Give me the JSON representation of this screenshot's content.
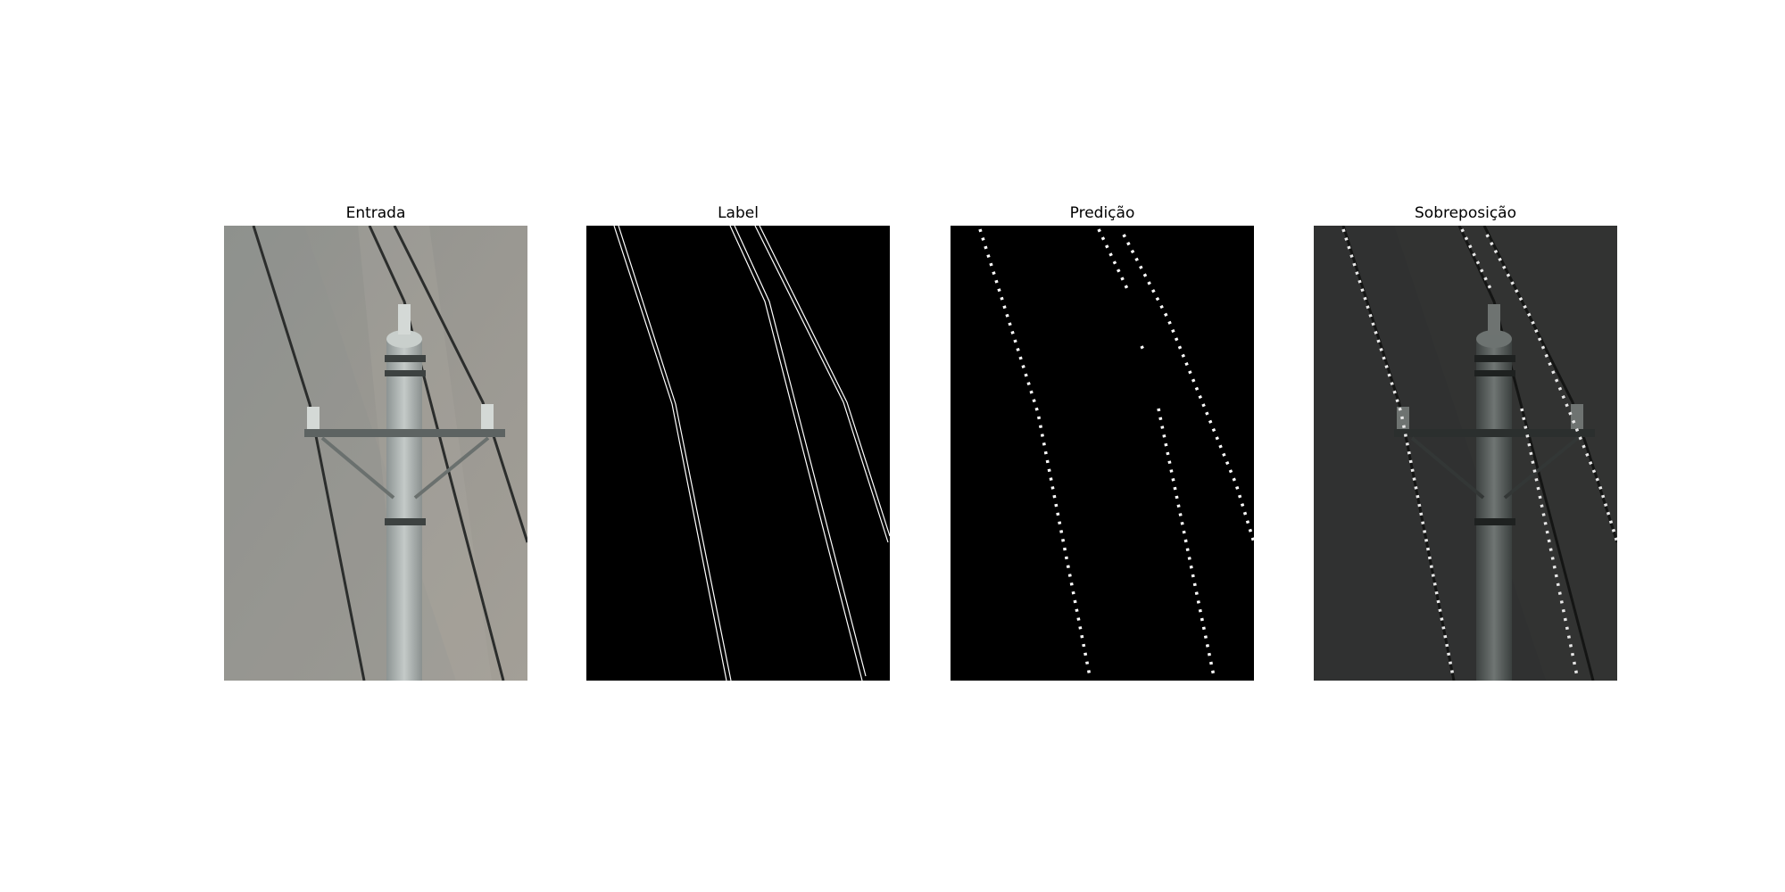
{
  "panels": [
    {
      "title": "Entrada"
    },
    {
      "title": "Label"
    },
    {
      "title": "Predição"
    },
    {
      "title": "Sobreposição"
    }
  ],
  "colors": {
    "ground": "#96948f",
    "background": "#000000",
    "label_line": "#ffffff",
    "prediction_dots": "#ffffff",
    "overlay_dim": "#2f2f2e"
  }
}
